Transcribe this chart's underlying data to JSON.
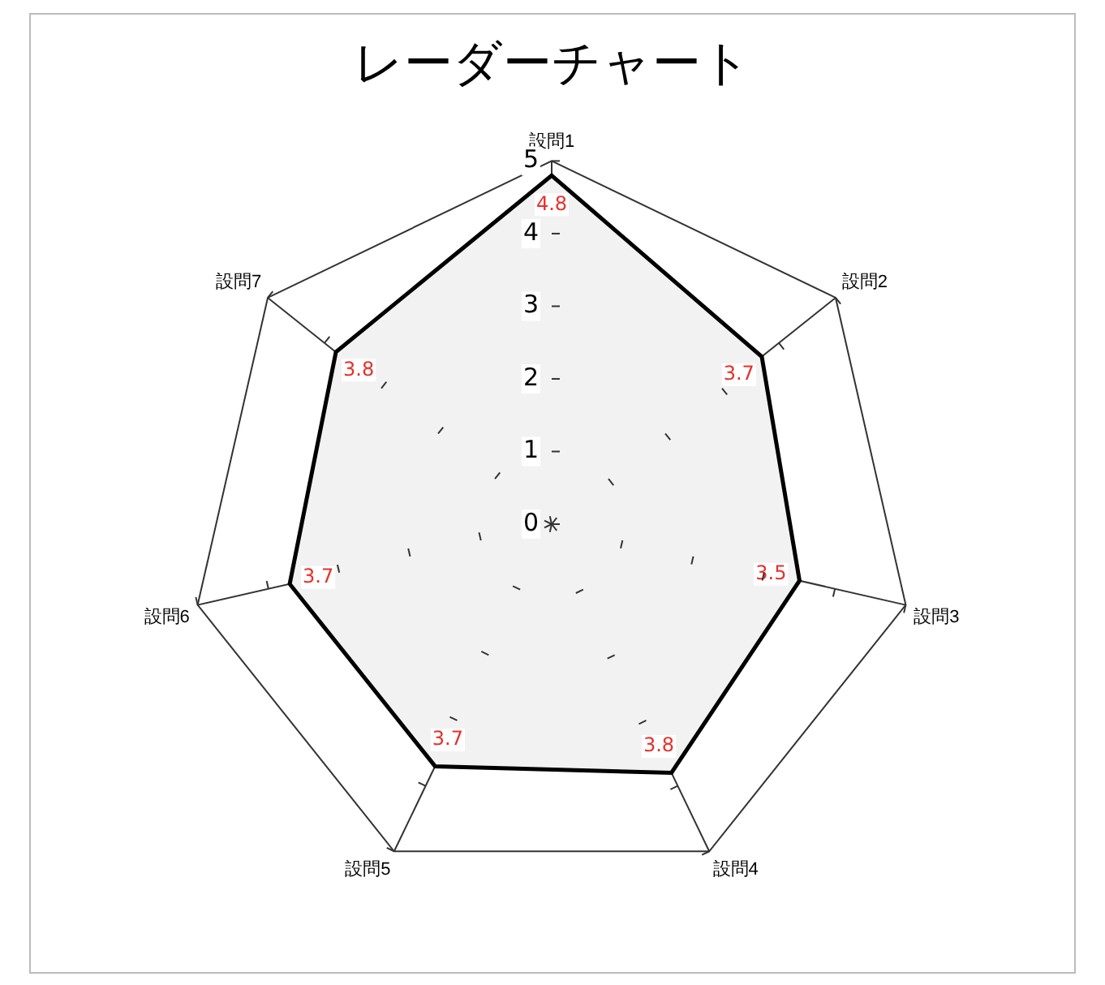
{
  "chart_data": {
    "type": "radar",
    "title": "レーダーチャート",
    "categories": [
      "設問1",
      "設問2",
      "設問3",
      "設問4",
      "設問5",
      "設問6",
      "設問7"
    ],
    "series": [
      {
        "color": "#000000",
        "values": [
          4.8,
          3.7,
          3.5,
          3.8,
          3.7,
          3.7,
          3.8
        ]
      }
    ],
    "ylim": [
      0,
      5
    ],
    "yticks": [
      0,
      1,
      2,
      3,
      4,
      5
    ],
    "data_labels": true,
    "legend": false,
    "marker": "none"
  }
}
